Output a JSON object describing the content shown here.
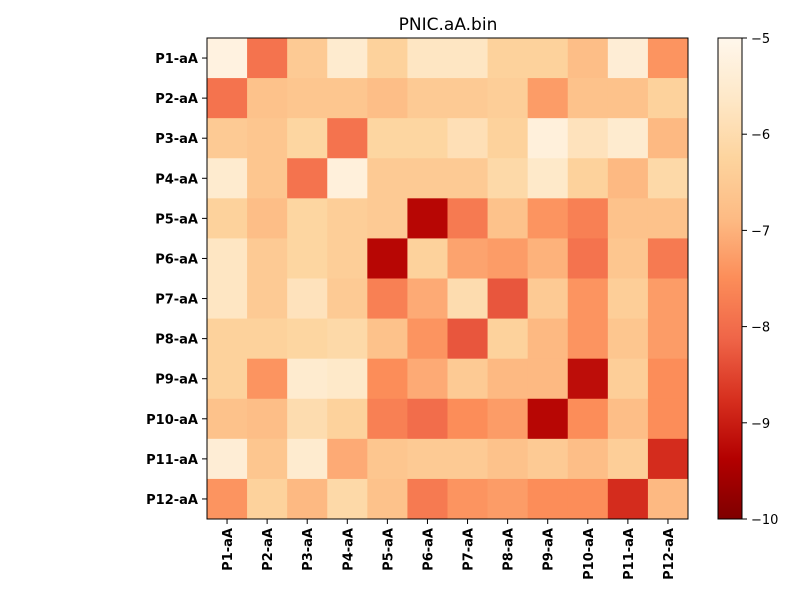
{
  "chart_data": {
    "type": "heatmap",
    "title": "PNIC.aA.bin",
    "rows": [
      "P1-aA",
      "P2-aA",
      "P3-aA",
      "P4-aA",
      "P5-aA",
      "P6-aA",
      "P7-aA",
      "P8-aA",
      "P9-aA",
      "P10-aA",
      "P11-aA",
      "P12-aA"
    ],
    "cols": [
      "P1-aA",
      "P2-aA",
      "P3-aA",
      "P4-aA",
      "P5-aA",
      "P6-aA",
      "P7-aA",
      "P8-aA",
      "P9-aA",
      "P10-aA",
      "P11-aA",
      "P12-aA"
    ],
    "values": [
      [
        -5.2,
        -7.9,
        -6.5,
        -5.5,
        -6.3,
        -5.7,
        -5.7,
        -6.3,
        -6.3,
        -6.8,
        -5.4,
        -7.4
      ],
      [
        -7.9,
        -6.7,
        -6.6,
        -6.6,
        -6.8,
        -6.5,
        -6.5,
        -6.4,
        -7.3,
        -6.7,
        -6.7,
        -6.3
      ],
      [
        -6.5,
        -6.6,
        -6.2,
        -7.9,
        -6.2,
        -6.2,
        -5.9,
        -6.3,
        -5.3,
        -5.8,
        -5.5,
        -6.9
      ],
      [
        -5.5,
        -6.6,
        -7.9,
        -5.3,
        -6.5,
        -6.5,
        -6.5,
        -6.1,
        -5.6,
        -6.3,
        -6.9,
        -6.1
      ],
      [
        -6.3,
        -6.8,
        -6.2,
        -6.4,
        -6.5,
        -9.3,
        -7.8,
        -6.7,
        -7.4,
        -7.7,
        -6.7,
        -6.7
      ],
      [
        -5.7,
        -6.5,
        -6.2,
        -6.4,
        -9.3,
        -6.3,
        -7.2,
        -7.3,
        -7.0,
        -7.9,
        -6.6,
        -7.8
      ],
      [
        -5.7,
        -6.5,
        -5.8,
        -6.5,
        -7.7,
        -7.1,
        -6.0,
        -8.3,
        -6.5,
        -7.4,
        -6.4,
        -7.3
      ],
      [
        -6.3,
        -6.3,
        -6.2,
        -6.1,
        -6.7,
        -7.4,
        -8.3,
        -6.3,
        -6.9,
        -7.4,
        -6.6,
        -7.3
      ],
      [
        -6.3,
        -7.4,
        -5.5,
        -5.6,
        -7.5,
        -7.1,
        -6.5,
        -6.9,
        -6.9,
        -9.2,
        -6.4,
        -7.5
      ],
      [
        -6.7,
        -6.8,
        -6.0,
        -6.3,
        -7.7,
        -8.0,
        -7.5,
        -7.3,
        -9.3,
        -7.5,
        -6.8,
        -7.5
      ],
      [
        -5.4,
        -6.6,
        -5.5,
        -7.1,
        -6.6,
        -6.5,
        -6.5,
        -6.7,
        -6.5,
        -6.8,
        -6.4,
        -8.8
      ],
      [
        -7.4,
        -6.3,
        -6.9,
        -6.1,
        -6.7,
        -7.8,
        -7.4,
        -7.3,
        -7.5,
        -7.5,
        -8.8,
        -6.9
      ]
    ],
    "colorbar": {
      "min": -10,
      "max": -5,
      "ticks": [
        -5,
        -6,
        -7,
        -8,
        -9,
        -10
      ],
      "colormap": "OrRd"
    },
    "grid": false
  }
}
